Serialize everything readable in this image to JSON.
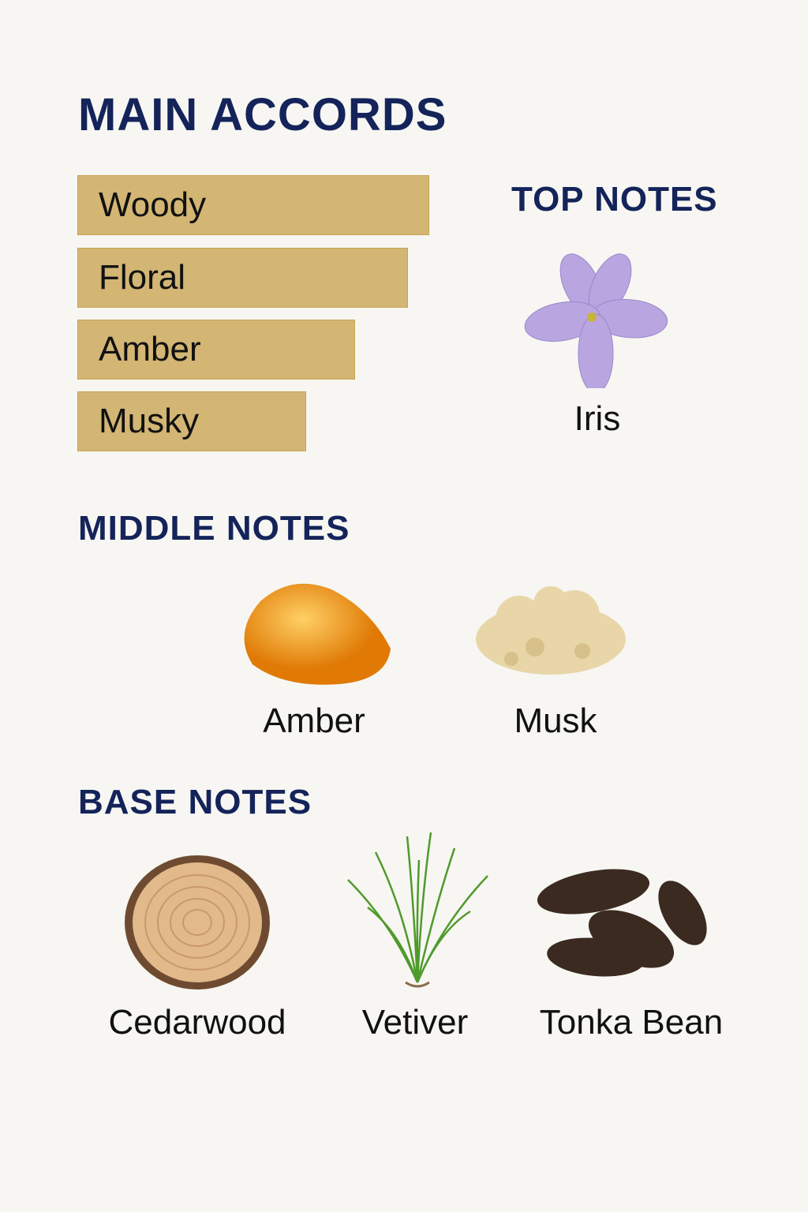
{
  "title": "MAIN ACCORDS",
  "accords": [
    {
      "label": "Woody",
      "strength": 1.0
    },
    {
      "label": "Floral",
      "strength": 0.94
    },
    {
      "label": "Amber",
      "strength": 0.79
    },
    {
      "label": "Musky",
      "strength": 0.65
    }
  ],
  "accord_color": "#d3b574",
  "heading_color": "#14245a",
  "top_notes": {
    "title": "TOP NOTES",
    "items": [
      {
        "label": "Iris",
        "icon": "iris-flower-icon"
      }
    ]
  },
  "middle_notes": {
    "title": "MIDDLE NOTES",
    "items": [
      {
        "label": "Amber",
        "icon": "amber-stone-icon"
      },
      {
        "label": "Musk",
        "icon": "musk-icon"
      }
    ]
  },
  "base_notes": {
    "title": "BASE NOTES",
    "items": [
      {
        "label": "Cedarwood",
        "icon": "wood-slice-icon"
      },
      {
        "label": "Vetiver",
        "icon": "grass-icon"
      },
      {
        "label": "Tonka Bean",
        "icon": "tonka-beans-icon"
      }
    ]
  }
}
